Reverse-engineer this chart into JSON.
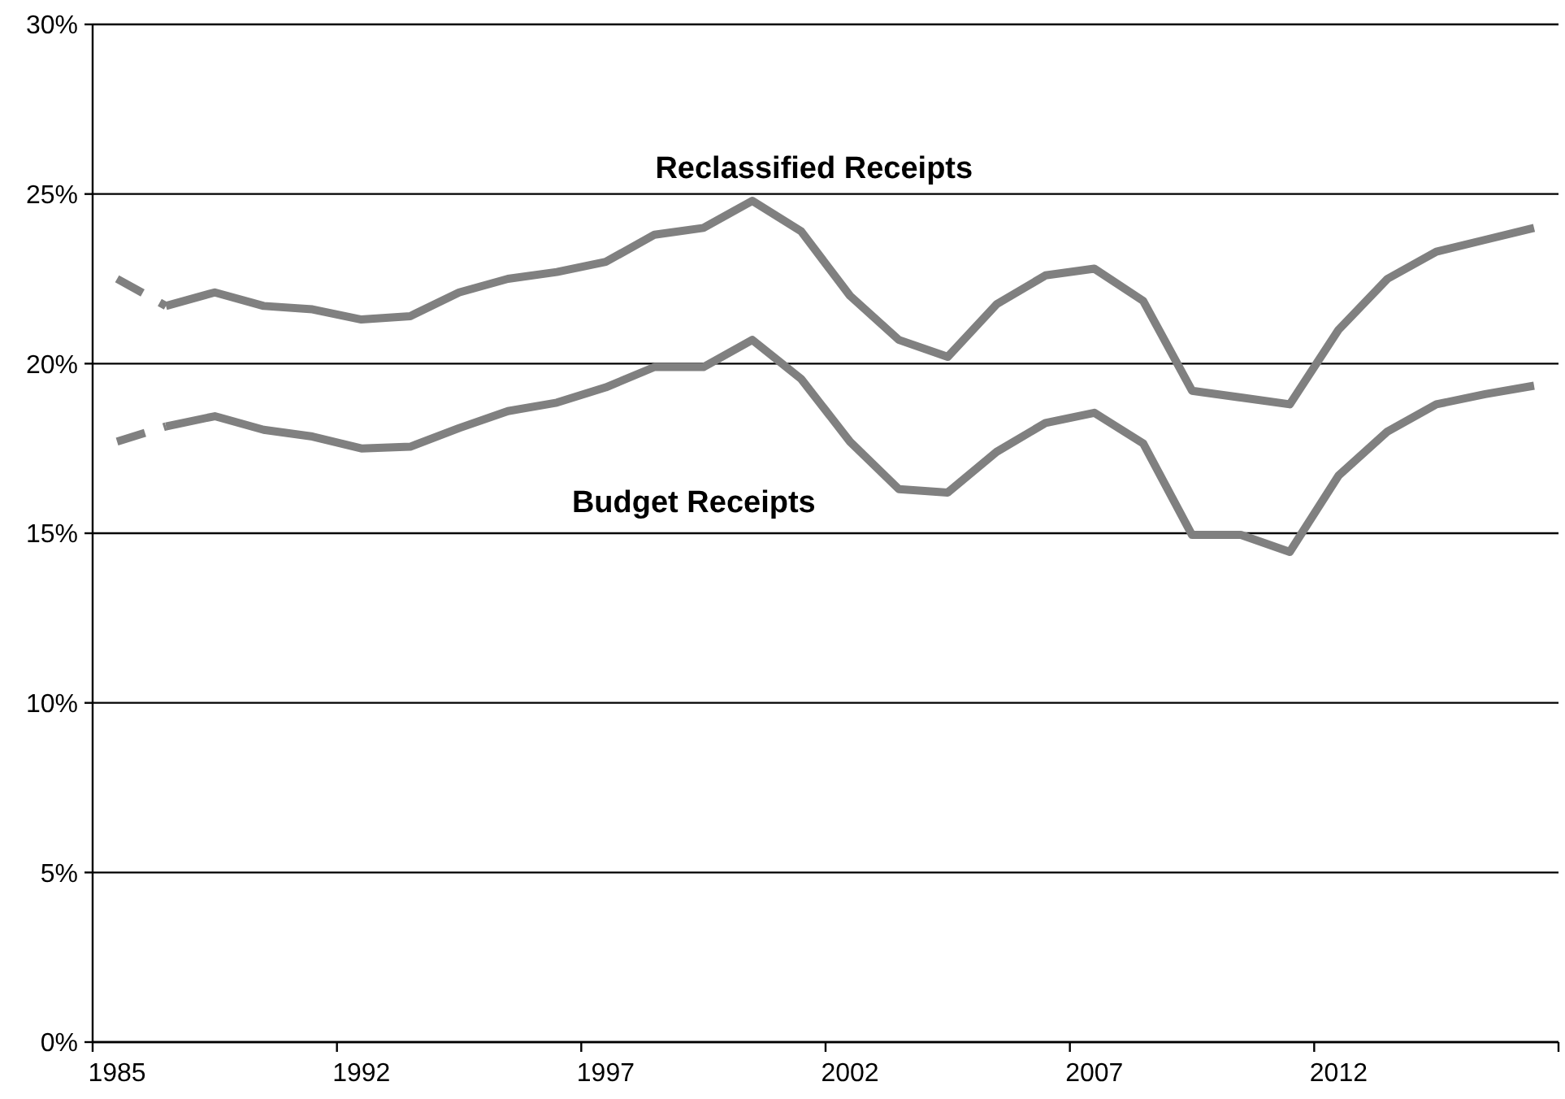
{
  "chart_data": {
    "type": "line",
    "categories": [
      "1985",
      null,
      null,
      null,
      null,
      "1992",
      null,
      null,
      null,
      null,
      "1997",
      null,
      null,
      null,
      null,
      "2002",
      null,
      null,
      null,
      null,
      "2007",
      null,
      null,
      null,
      null,
      "2012",
      null,
      null,
      null,
      null
    ],
    "series": [
      {
        "name": "Reclassified Receipts",
        "color": "#808080",
        "line_style": "solid",
        "values": [
          null,
          21.7,
          22.1,
          21.7,
          21.6,
          21.3,
          21.4,
          22.1,
          22.5,
          22.7,
          23.0,
          23.8,
          24.0,
          24.8,
          23.9,
          22.0,
          20.7,
          20.2,
          21.75,
          22.6,
          22.8,
          21.85,
          19.2,
          19.0,
          18.8,
          21.0,
          22.5,
          23.3,
          23.65,
          24.0
        ]
      },
      {
        "color": "#808080",
        "line_style": "dashed",
        "values": [
          22.5,
          21.7,
          null,
          null,
          null,
          null,
          null,
          null,
          null,
          null,
          null,
          null,
          null,
          null,
          null,
          null,
          null,
          null,
          null,
          null,
          null,
          null,
          null,
          null,
          null,
          null,
          null,
          null,
          null,
          null
        ]
      },
      {
        "name": "Budget Receipts",
        "color": "#808080",
        "line_style": "solid",
        "values": [
          null,
          18.15,
          18.45,
          18.05,
          17.85,
          17.5,
          17.55,
          18.1,
          18.6,
          18.85,
          19.3,
          19.9,
          19.9,
          20.7,
          19.55,
          17.7,
          16.3,
          16.2,
          17.4,
          18.25,
          18.55,
          17.65,
          14.95,
          14.95,
          14.45,
          16.7,
          18.0,
          18.8,
          19.1,
          19.35
        ]
      },
      {
        "color": "#808080",
        "line_style": "dashed",
        "values": [
          17.7,
          18.15,
          null,
          null,
          null,
          null,
          null,
          null,
          null,
          null,
          null,
          null,
          null,
          null,
          null,
          null,
          null,
          null,
          null,
          null,
          null,
          null,
          null,
          null,
          null,
          null,
          null,
          null,
          null,
          null
        ]
      }
    ],
    "ylim": [
      0,
      30
    ],
    "yticks": [
      {
        "value": 0,
        "label": "0%"
      },
      {
        "value": 5,
        "label": "5%"
      },
      {
        "value": 10,
        "label": "10%"
      },
      {
        "value": 15,
        "label": "15%"
      },
      {
        "value": 20,
        "label": "20%"
      },
      {
        "value": 25,
        "label": "25%"
      },
      {
        "value": 30,
        "label": "30%"
      }
    ],
    "grid": "y"
  }
}
